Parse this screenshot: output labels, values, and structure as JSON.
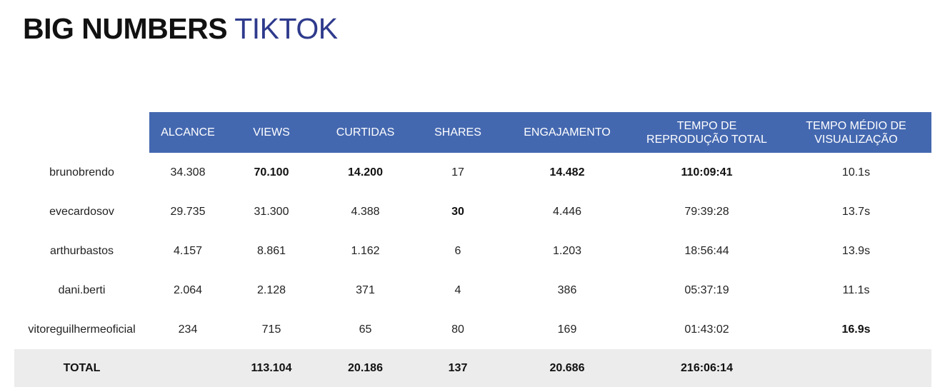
{
  "title": {
    "bold": "BIG NUMBERS",
    "light": "TIKTOK"
  },
  "table": {
    "headers": [
      "ALCANCE",
      "VIEWS",
      "CURTIDAS",
      "SHARES",
      "ENGAJAMENTO",
      "TEMPO DE\nREPRODUÇÃO TOTAL",
      "TEMPO MÉDIO DE\nVISUALIZAÇÃO"
    ],
    "rows": [
      {
        "name": "brunobrendo",
        "cells": [
          "34.308",
          "70.100",
          "14.200",
          "17",
          "14.482",
          "110:09:41",
          "10.1s"
        ],
        "bold": [
          1,
          2,
          4,
          5
        ]
      },
      {
        "name": "evecardosov",
        "cells": [
          "29.735",
          "31.300",
          "4.388",
          "30",
          "4.446",
          "79:39:28",
          "13.7s"
        ],
        "bold": [
          3
        ]
      },
      {
        "name": "arthurbastos",
        "cells": [
          "4.157",
          "8.861",
          "1.162",
          "6",
          "1.203",
          "18:56:44",
          "13.9s"
        ],
        "bold": []
      },
      {
        "name": "dani.berti",
        "cells": [
          "2.064",
          "2.128",
          "371",
          "4",
          "386",
          "05:37:19",
          "11.1s"
        ],
        "bold": []
      },
      {
        "name": "vitoreguilhermeoficial",
        "cells": [
          "234",
          "715",
          "65",
          "80",
          "169",
          "01:43:02",
          "16.9s"
        ],
        "bold": [
          6
        ]
      }
    ],
    "total": {
      "label": "TOTAL",
      "cells": [
        "",
        "113.104",
        "20.186",
        "137",
        "20.686",
        "216:06:14",
        ""
      ]
    }
  },
  "colors": {
    "header_bg": "#4468b0",
    "total_bg": "#ececec",
    "title_accent": "#2e3a8c"
  }
}
